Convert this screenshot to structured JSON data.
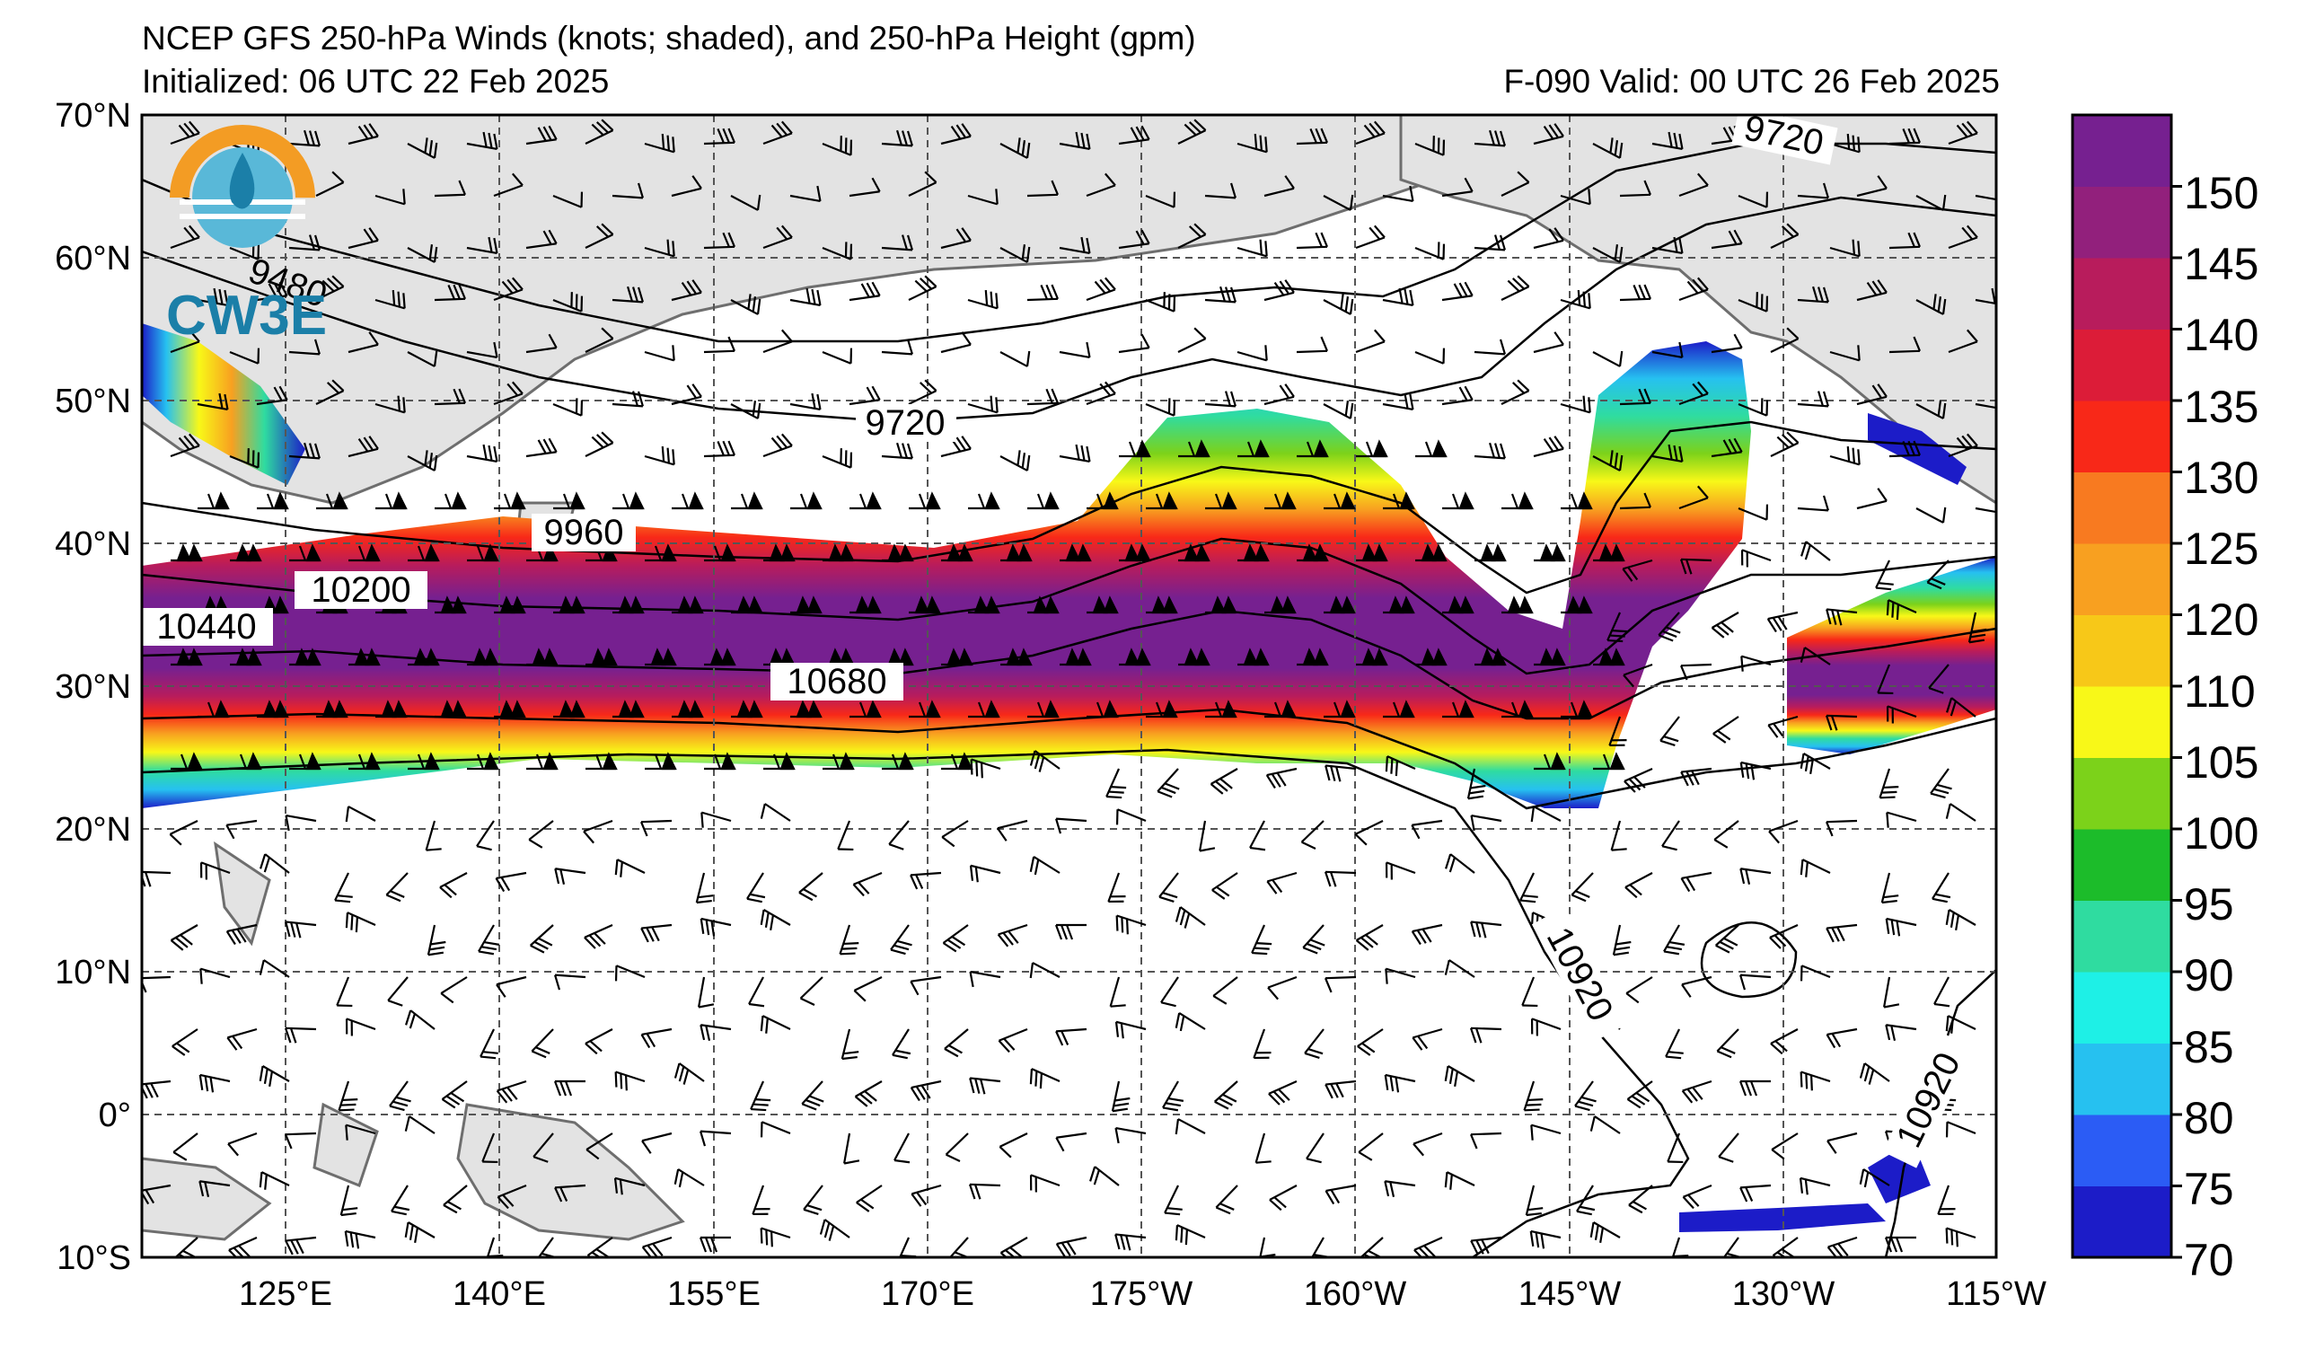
{
  "header": {
    "title": "NCEP GFS 250-hPa Winds (knots; shaded), and 250-hPa Height (gpm)",
    "initialized": "Initialized: 06 UTC 22 Feb 2025",
    "valid": "F-090  Valid: 00 UTC 26 Feb 2025"
  },
  "logo": {
    "text": "CW3E",
    "colors": [
      "#f39c24",
      "#1b7fa8",
      "#59b8d8"
    ]
  },
  "map": {
    "region": {
      "lon_range": [
        "115°E",
        "115°W"
      ],
      "lat_range": [
        "10°S",
        "70°N"
      ]
    },
    "lat_labels": [
      "70°N",
      "60°N",
      "50°N",
      "40°N",
      "30°N",
      "20°N",
      "10°N",
      "0°",
      "10°S"
    ],
    "lon_labels": [
      "125°E",
      "140°E",
      "155°E",
      "170°E",
      "175°W",
      "160°W",
      "145°W",
      "130°W",
      "115°W"
    ],
    "height_contour_labels": [
      "9720",
      "9720",
      "9480",
      "9960",
      "10200",
      "10440",
      "10680",
      "10920",
      "10920"
    ],
    "land_color": "#e3e3e3",
    "coast_color": "#6e6e6e"
  },
  "colorbar": {
    "ticks": [
      "150",
      "145",
      "140",
      "135",
      "130",
      "125",
      "120",
      "110",
      "105",
      "100",
      "95",
      "90",
      "85",
      "80",
      "75",
      "70"
    ],
    "colors": [
      "#1c1cc8",
      "#2b5cf5",
      "#26c1f0",
      "#1ef0e6",
      "#2fdca0",
      "#1cbc2a",
      "#7cd21a",
      "#f8f818",
      "#f7c818",
      "#f8a020",
      "#f87a20",
      "#f82818",
      "#dc1c38",
      "#b81c5c",
      "#92207c",
      "#762090"
    ]
  }
}
